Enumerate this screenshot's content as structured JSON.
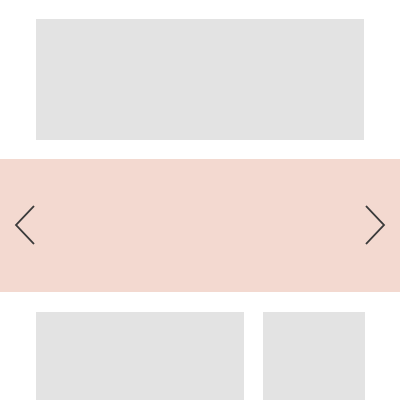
{
  "carousel": {
    "background_color": "#f3d9d0",
    "prev_icon": "chevron-left-icon",
    "next_icon": "chevron-right-icon",
    "arrow_color": "#3a3a3a"
  },
  "placeholders": {
    "color": "#e3e3e3"
  }
}
